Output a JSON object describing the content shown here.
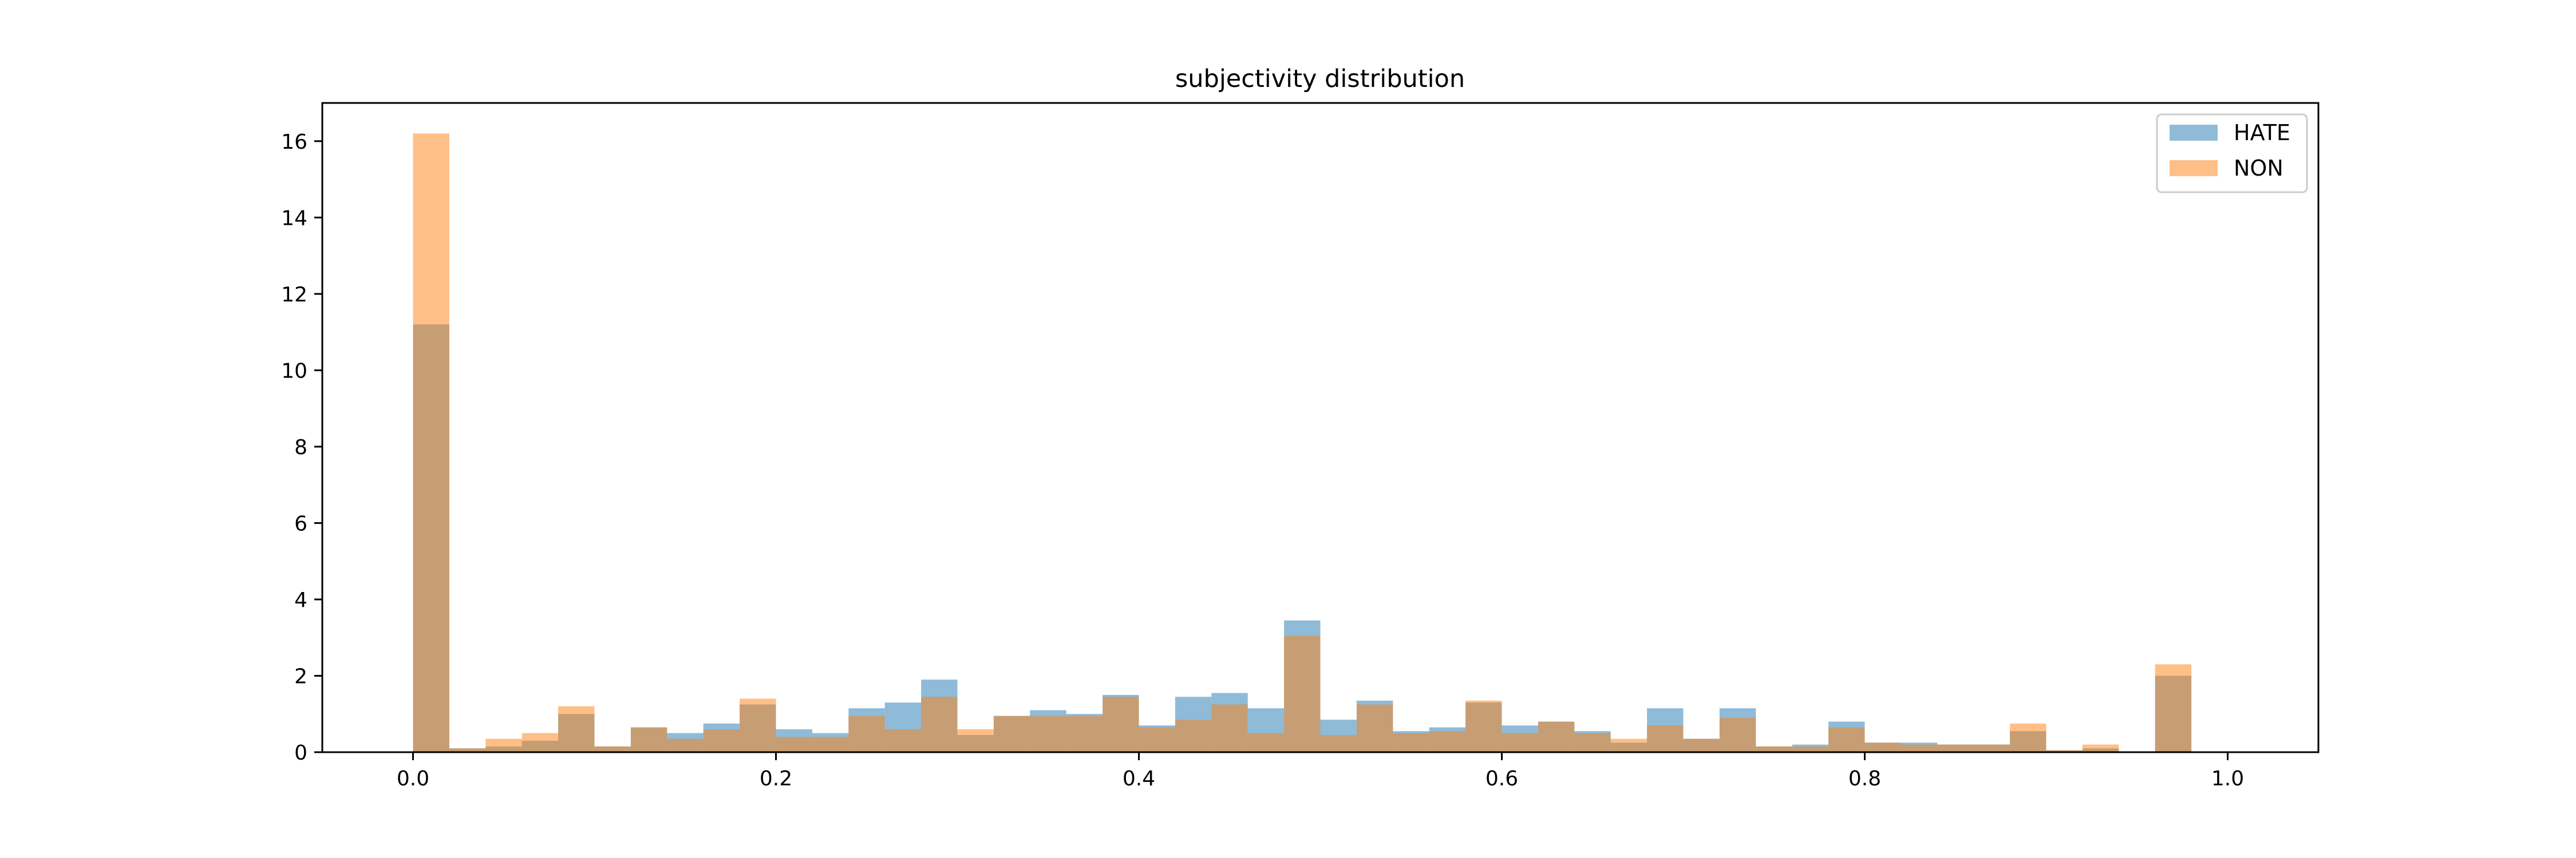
{
  "chart_data": {
    "type": "bar",
    "title": "subjectivity distribution",
    "xlabel": "",
    "ylabel": "",
    "xlim": [
      -0.05,
      1.05
    ],
    "ylim": [
      0,
      17
    ],
    "xticks": [
      0.0,
      0.2,
      0.4,
      0.6,
      0.8,
      1.0
    ],
    "xtick_labels": [
      "0.0",
      "0.2",
      "0.4",
      "0.6",
      "0.8",
      "1.0"
    ],
    "yticks": [
      0,
      2,
      4,
      6,
      8,
      10,
      12,
      14,
      16
    ],
    "ytick_labels": [
      "0",
      "2",
      "4",
      "6",
      "8",
      "10",
      "12",
      "14",
      "16"
    ],
    "bins": 50,
    "bin_range": [
      0,
      1
    ],
    "grid": false,
    "legend_position": "top-right",
    "series": [
      {
        "name": "HATE",
        "color": "#1f77b4",
        "alpha": 0.5,
        "values": [
          11.2,
          0.1,
          0.15,
          0.3,
          1.0,
          0.15,
          0.65,
          0.5,
          0.75,
          1.25,
          0.6,
          0.5,
          1.15,
          1.3,
          1.9,
          0.45,
          0.95,
          1.1,
          1.0,
          1.5,
          0.7,
          1.45,
          1.55,
          1.15,
          3.45,
          0.85,
          1.35,
          0.55,
          0.65,
          1.3,
          0.7,
          0.8,
          0.55,
          0.25,
          1.15,
          0.35,
          1.15,
          0.15,
          0.2,
          0.8,
          0.25,
          0.25,
          0.2,
          0.2,
          0.55,
          0.05,
          0.1,
          0.0,
          2.0,
          0.0
        ]
      },
      {
        "name": "NON",
        "color": "#ff7f0e",
        "alpha": 0.5,
        "values": [
          16.2,
          0.1,
          0.35,
          0.5,
          1.2,
          0.15,
          0.65,
          0.35,
          0.6,
          1.4,
          0.4,
          0.4,
          0.95,
          0.6,
          1.45,
          0.6,
          0.95,
          0.95,
          0.95,
          1.45,
          0.65,
          0.85,
          1.25,
          0.5,
          3.05,
          0.45,
          1.25,
          0.5,
          0.55,
          1.35,
          0.5,
          0.8,
          0.5,
          0.35,
          0.7,
          0.35,
          0.9,
          0.15,
          0.15,
          0.65,
          0.25,
          0.2,
          0.2,
          0.2,
          0.75,
          0.05,
          0.2,
          0.0,
          2.3,
          0.0
        ]
      }
    ]
  }
}
